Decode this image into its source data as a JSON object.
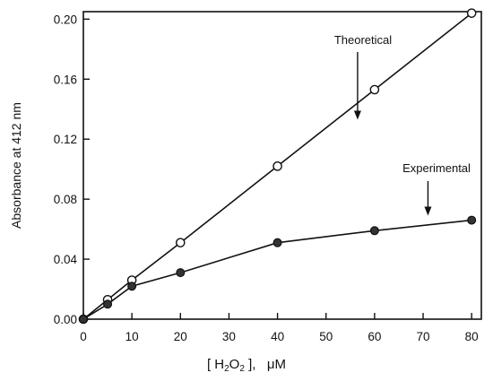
{
  "chart_data": {
    "type": "line",
    "title": "",
    "ylabel": "Absorbance at 412 nm",
    "xlabel": {
      "open": "[ H",
      "sub1": "2",
      "mid": "O",
      "sub2": "2",
      "close": " ],   μM"
    },
    "xlim": [
      0,
      82
    ],
    "ylim": [
      0,
      0.205
    ],
    "xticks": [
      0,
      10,
      20,
      30,
      40,
      50,
      60,
      70,
      80
    ],
    "xtick_labels": [
      "0",
      "10",
      "20",
      "30",
      "40",
      "50",
      "60",
      "70",
      "80"
    ],
    "yticks": [
      0,
      0.04,
      0.08,
      0.12,
      0.16,
      0.2
    ],
    "ytick_labels": [
      "0.00",
      "0.04",
      "0.08",
      "0.12",
      "0.16",
      "0.20"
    ],
    "grid": false,
    "series": [
      {
        "name": "Theoretical",
        "marker": "open-circle",
        "x": [
          0,
          5,
          10,
          20,
          40,
          60,
          80
        ],
        "y": [
          0,
          0.013,
          0.026,
          0.051,
          0.102,
          0.153,
          0.204
        ]
      },
      {
        "name": "Experimental",
        "marker": "filled-circle",
        "x": [
          0,
          5,
          10,
          20,
          40,
          60,
          80
        ],
        "y": [
          0,
          0.01,
          0.022,
          0.031,
          0.051,
          0.059,
          0.066
        ]
      }
    ],
    "annotations": [
      {
        "text": "Theoretical",
        "arrow_to": [
          56.5,
          0.133
        ]
      },
      {
        "text": "Experimental",
        "arrow_to": [
          71,
          0.069
        ]
      }
    ]
  }
}
